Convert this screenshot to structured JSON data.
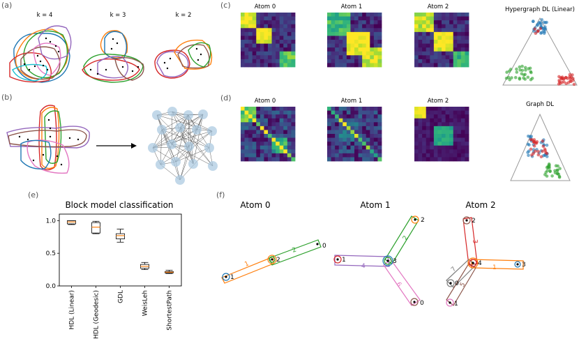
{
  "panels": {
    "a": {
      "label": "(a)",
      "k_labels": [
        "k = 4",
        "k = 3",
        "k = 2"
      ]
    },
    "b": {
      "label": "(b)"
    },
    "c": {
      "label": "(c)",
      "atom_titles": [
        "Atom 0",
        "Atom 1",
        "Atom 2"
      ],
      "ternary_title": "Hypergraph DL (Linear)"
    },
    "d": {
      "label": "(d)",
      "atom_titles": [
        "Atom 0",
        "Atom 1",
        "Atom 2"
      ],
      "ternary_title": "Graph DL"
    },
    "e": {
      "label": "(e)"
    },
    "f": {
      "label": "(f)",
      "atoms": [
        {
          "title": "Atom 0",
          "node_labels": [
            "0",
            "1",
            "2"
          ],
          "edge_labels": [
            "1",
            "2"
          ]
        },
        {
          "title": "Atom 1",
          "node_labels": [
            "1",
            "2",
            "3",
            "0"
          ],
          "edge_labels": [
            "2",
            "4",
            "6"
          ]
        },
        {
          "title": "Atom 2",
          "node_labels": [
            "2",
            "4",
            "3",
            "0",
            "1"
          ],
          "edge_labels": [
            "3",
            "7",
            "1",
            "5"
          ]
        }
      ]
    }
  },
  "colors": {
    "low": "#440154",
    "mid": "#21918c",
    "high": "#fde725",
    "orange": "#ff7f0e",
    "green": "#2ca02c",
    "blue": "#1f77b4",
    "red": "#d62728",
    "purple": "#9467bd",
    "brown": "#8c564b",
    "pink": "#e377c2",
    "gray": "#7f7f7f"
  },
  "chart_data": {
    "type": "box",
    "title": "Block model classification",
    "categories": [
      "HDL (Linear)",
      "HDL (Geodesic)",
      "GDL",
      "WeisLeh",
      "ShortestPath"
    ],
    "yticks": [
      "0.0",
      "0.5",
      "1.0"
    ],
    "ylim": [
      0,
      1.1
    ],
    "boxes": [
      {
        "whislo": 0.94,
        "q1": 0.95,
        "med": 0.98,
        "q3": 1.0,
        "whishi": 1.0
      },
      {
        "whislo": 0.8,
        "q1": 0.81,
        "med": 0.9,
        "q3": 0.97,
        "whishi": 0.99
      },
      {
        "whislo": 0.67,
        "q1": 0.72,
        "med": 0.77,
        "q3": 0.8,
        "whishi": 0.87
      },
      {
        "whislo": 0.25,
        "q1": 0.27,
        "med": 0.3,
        "q3": 0.33,
        "whishi": 0.36
      },
      {
        "whislo": 0.19,
        "q1": 0.2,
        "med": 0.21,
        "q3": 0.22,
        "whishi": 0.24
      }
    ]
  }
}
